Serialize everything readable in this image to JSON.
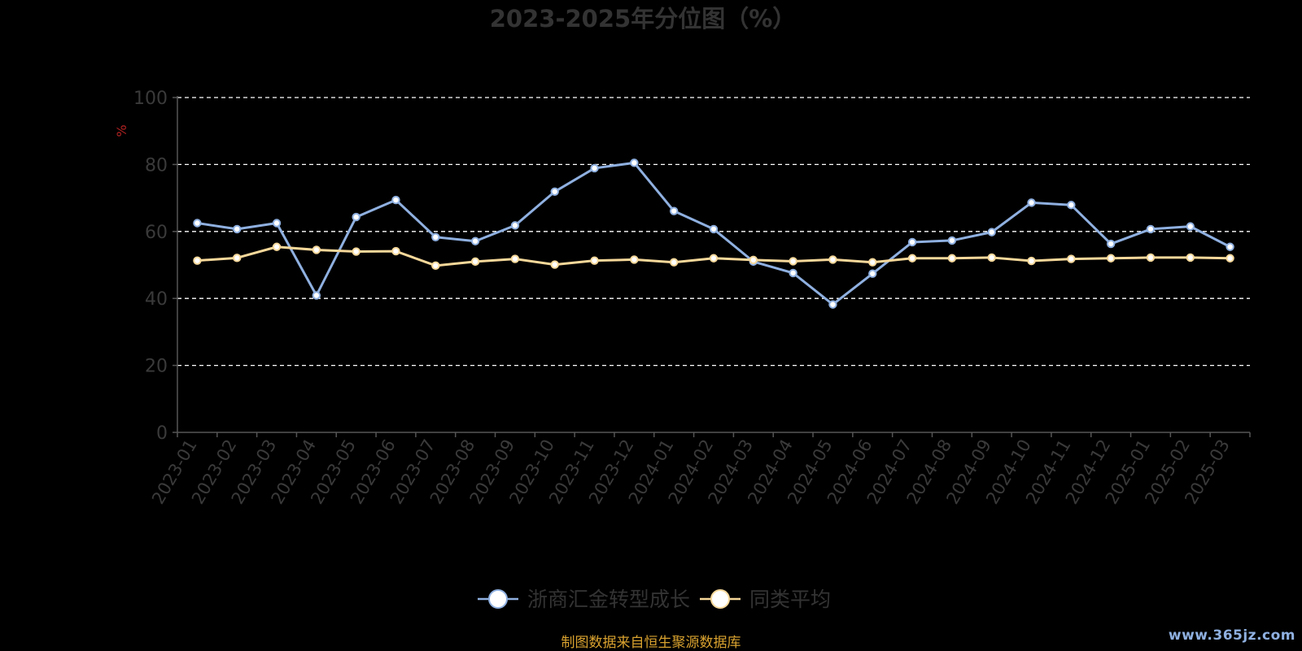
{
  "chart_data": {
    "type": "line",
    "title": "2023-2025年分位图（%）",
    "ylabel": "%",
    "ylim": [
      0,
      100
    ],
    "yticks": [
      "0",
      "20",
      "40",
      "60",
      "80",
      "100"
    ],
    "grid": true,
    "legend_position": "bottom-center",
    "categories": [
      "2023-01",
      "2023-02",
      "2023-03",
      "2023-04",
      "2023-05",
      "2023-06",
      "2023-07",
      "2023-08",
      "2023-09",
      "2023-10",
      "2023-11",
      "2023-12",
      "2024-01",
      "2024-02",
      "2024-03",
      "2024-04",
      "2024-05",
      "2024-06",
      "2024-07",
      "2024-08",
      "2024-09",
      "2024-10",
      "2024-11",
      "2024-12",
      "2025-01",
      "2025-02",
      "2025-03"
    ],
    "series": [
      {
        "name": "浙商汇金转型成长",
        "color": "#8fb0e0",
        "values": [
          62.5,
          60.7,
          62.5,
          40.9,
          64.3,
          69.4,
          58.3,
          57.1,
          61.8,
          71.9,
          78.9,
          80.5,
          66.1,
          60.7,
          51.0,
          47.6,
          38.2,
          47.4,
          56.8,
          57.3,
          59.8,
          68.6,
          67.9,
          56.3,
          60.7,
          61.5,
          55.4
        ]
      },
      {
        "name": "同类平均",
        "color": "#f6d89a",
        "values": [
          51.3,
          52.1,
          55.4,
          54.5,
          54.0,
          54.1,
          49.8,
          51.0,
          51.8,
          50.1,
          51.3,
          51.6,
          50.8,
          52.0,
          51.5,
          51.1,
          51.6,
          50.8,
          52.0,
          52.0,
          52.2,
          51.2,
          51.8,
          52.0,
          52.2,
          52.2,
          52.0
        ]
      }
    ]
  },
  "colors": {
    "background": "#000000",
    "grid": "#ffffff",
    "axis": "#555555",
    "tick_text": "#3a3a3a",
    "title_text": "#333333",
    "ylabel_text": "#b22222"
  },
  "footer": {
    "source_note": "制图数据来自恒生聚源数据库",
    "watermark": "www.365jz.com"
  }
}
